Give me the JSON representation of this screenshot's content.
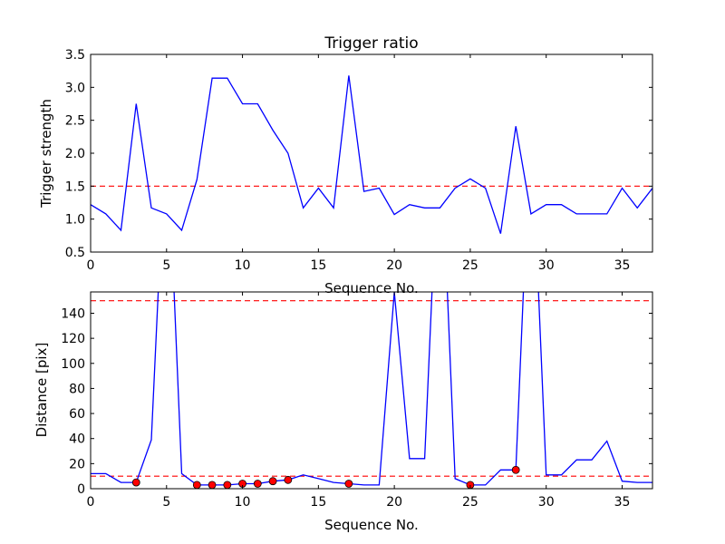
{
  "chart_data": [
    {
      "type": "line",
      "title": "Trigger ratio",
      "xlabel": "Sequence No.",
      "ylabel": "Trigger strength",
      "xlim": [
        0,
        37
      ],
      "ylim": [
        0.5,
        3.5
      ],
      "xticks": [
        0,
        5,
        10,
        15,
        20,
        25,
        30,
        35
      ],
      "yticks": [
        0.5,
        1.0,
        1.5,
        2.0,
        2.5,
        3.0,
        3.5
      ],
      "ytick_labels": [
        "0.5",
        "1.0",
        "1.5",
        "2.0",
        "2.5",
        "3.0",
        "3.5"
      ],
      "grid": false,
      "series": [
        {
          "color": "#0000ff",
          "x": [
            0,
            1,
            2,
            3,
            4,
            5,
            6,
            7,
            8,
            9,
            10,
            11,
            12,
            13,
            14,
            15,
            16,
            17,
            18,
            19,
            20,
            21,
            22,
            23,
            24,
            25,
            26,
            27,
            28,
            29,
            30,
            31,
            32,
            33,
            34,
            35,
            36,
            37
          ],
          "values": [
            1.22,
            1.08,
            0.83,
            2.75,
            1.17,
            1.08,
            0.83,
            1.6,
            3.14,
            3.14,
            2.75,
            2.75,
            2.35,
            2.0,
            1.17,
            1.47,
            1.17,
            3.18,
            1.42,
            1.47,
            1.07,
            1.22,
            1.17,
            1.17,
            1.47,
            1.61,
            1.47,
            0.78,
            2.41,
            1.08,
            1.22,
            1.22,
            1.08,
            1.08,
            1.08,
            1.47,
            1.17,
            1.47
          ]
        }
      ],
      "threshold": {
        "value": 1.5,
        "color": "#ff0000"
      }
    },
    {
      "type": "line",
      "title": "",
      "xlabel": "Sequence No.",
      "ylabel": "Distance [pix]",
      "xlim": [
        0,
        37
      ],
      "ylim": [
        0,
        157
      ],
      "xticks": [
        0,
        5,
        10,
        15,
        20,
        25,
        30,
        35
      ],
      "yticks": [
        0,
        20,
        40,
        60,
        80,
        100,
        120,
        140
      ],
      "ytick_labels": [
        "0",
        "20",
        "40",
        "60",
        "80",
        "100",
        "120",
        "140"
      ],
      "grid": false,
      "series": [
        {
          "color": "#0000ff",
          "x": [
            0,
            1,
            2,
            3,
            4,
            5,
            6,
            7,
            8,
            9,
            10,
            11,
            12,
            13,
            14,
            15,
            16,
            17,
            18,
            19,
            20,
            21,
            22,
            23,
            24,
            25,
            26,
            27,
            28,
            29,
            30,
            31,
            32,
            33,
            34,
            35,
            36,
            37
          ],
          "values": [
            12,
            12,
            5,
            5,
            39,
            300,
            12,
            3,
            3,
            3,
            4,
            4,
            6,
            7,
            11,
            8,
            5,
            4,
            3,
            3,
            157,
            24,
            24,
            300,
            8,
            3,
            3,
            15,
            15,
            300,
            11,
            11,
            23,
            23,
            38,
            6,
            5,
            5
          ]
        }
      ],
      "markers": {
        "color": "#ff0000",
        "x": [
          3,
          7,
          8,
          9,
          10,
          11,
          12,
          13,
          17,
          25,
          28
        ],
        "values": [
          5,
          3,
          3,
          3,
          4,
          4,
          6,
          7,
          4,
          3,
          15
        ]
      },
      "thresholds": [
        {
          "value": 150,
          "color": "#ff0000"
        },
        {
          "value": 10,
          "color": "#ff0000"
        }
      ]
    }
  ]
}
